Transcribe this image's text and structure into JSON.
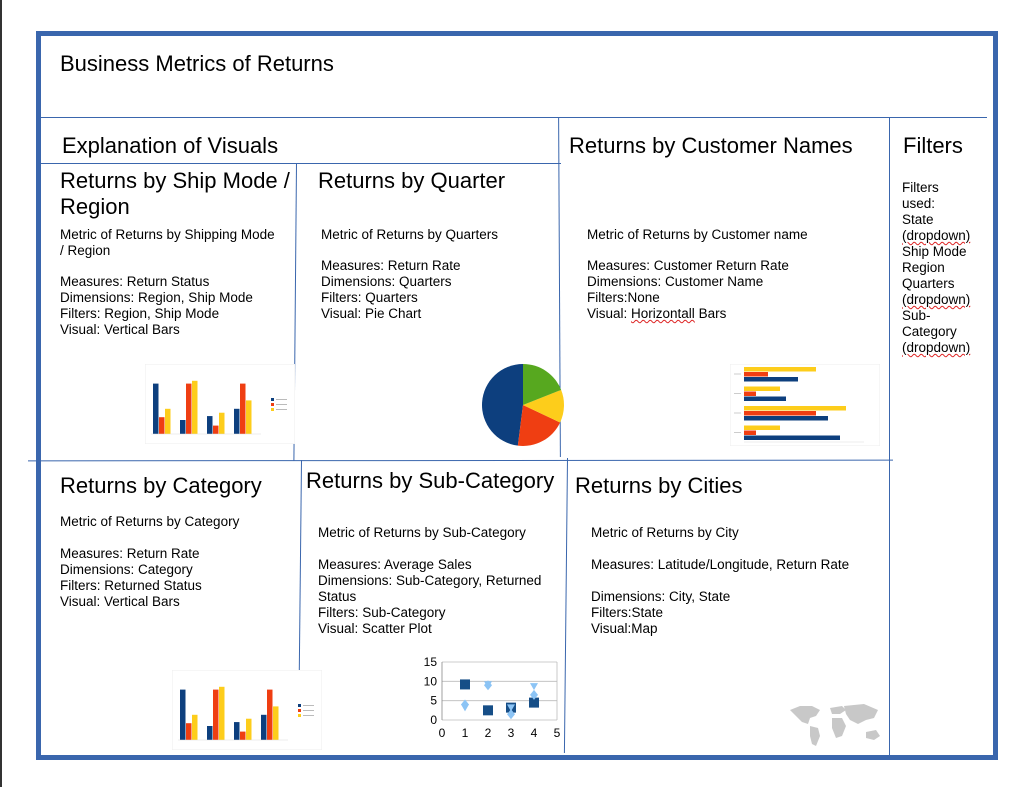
{
  "title": "Business Metrics of Returns",
  "explanation_heading": "Explanation of Visuals",
  "panels": {
    "ship_mode": {
      "heading": "Returns by Ship Mode / Region",
      "metric": "Metric of Returns by Shipping Mode / Region",
      "measures": "Measures: Return Status",
      "dimensions": "Dimensions: Region, Ship Mode",
      "filters": "Filters: Region, Ship Mode",
      "visual": "Visual: Vertical Bars"
    },
    "quarter": {
      "heading": "Returns by Quarter",
      "metric": "Metric of Returns by Quarters",
      "measures": "Measures: Return Rate",
      "dimensions": "Dimensions: Quarters",
      "filters": "Filters: Quarters",
      "visual": "Visual: Pie Chart"
    },
    "customer": {
      "heading": "Returns by Customer Names",
      "metric": "Metric of Returns by Customer name",
      "measures": "Measures: Customer Return Rate",
      "dimensions": "Dimensions: Customer Name",
      "filters": "Filters:None",
      "visual_prefix": "Visual: ",
      "visual_word": "Horizontall",
      "visual_suffix": " Bars"
    },
    "category": {
      "heading": "Returns by Category",
      "metric": "Metric of Returns by Category",
      "measures": "Measures: Return Rate",
      "dimensions": "Dimensions: Category",
      "filters": "Filters: Returned Status",
      "visual": "Visual: Vertical Bars"
    },
    "subcategory": {
      "heading": "Returns by Sub-Category",
      "metric": "Metric of Returns by Sub-Category",
      "measures": "Measures: Average Sales",
      "dimensions": "Dimensions: Sub-Category, Returned Status",
      "filters": "Filters: Sub-Category",
      "visual": "Visual: Scatter Plot"
    },
    "cities": {
      "heading": "Returns by Cities",
      "metric": "Metric of Returns by City",
      "measures": "Measures: Latitude/Longitude, Return Rate",
      "dimensions": "Dimensions: City, State",
      "filters": "Filters:State",
      "visual": "Visual:Map"
    }
  },
  "filters_panel": {
    "heading": "Filters",
    "intro": "Filters used:",
    "items": [
      {
        "text": "State",
        "note": "(dropdown)"
      },
      {
        "text": "Ship Mode",
        "note": ""
      },
      {
        "text": "Region",
        "note": ""
      },
      {
        "text": "Quarters",
        "note": "(dropdown)"
      },
      {
        "text": "Sub-Category",
        "note": "(dropdown)"
      }
    ]
  },
  "colors": {
    "frame": "#3a66ad",
    "navy": "#0d3f7e",
    "red": "#ef3e12",
    "yellow": "#fdcd1b",
    "green": "#57a81f",
    "scatter_dark": "#164e87",
    "scatter_light": "#8cc4f5"
  },
  "chart_data": [
    {
      "type": "bar",
      "categories": [
        "",
        "",
        "",
        ""
      ],
      "series": [
        {
          "values": [
            9,
            2.5,
            3.2,
            4.5
          ]
        },
        {
          "values": [
            3,
            9,
            1.5,
            9
          ]
        },
        {
          "values": [
            4.5,
            9.5,
            3.8,
            6
          ]
        }
      ],
      "ylim": [
        0,
        10
      ]
    },
    {
      "type": "pie",
      "values": [
        48,
        20,
        13,
        19
      ]
    },
    {
      "type": "bar",
      "orientation": "horizontal",
      "categories": [
        "",
        "",
        "",
        ""
      ],
      "series": [
        {
          "values": [
            4.5,
            3.5,
            7,
            8
          ]
        },
        {
          "values": [
            2,
            1,
            6,
            1
          ]
        },
        {
          "values": [
            6,
            3,
            8.5,
            3
          ]
        }
      ],
      "xlim": [
        0,
        10
      ]
    },
    {
      "type": "bar",
      "categories": [
        "",
        "",
        "",
        ""
      ],
      "series": [
        {
          "values": [
            9,
            2.5,
            3.2,
            4.5
          ]
        },
        {
          "values": [
            3,
            9,
            1.5,
            9
          ]
        },
        {
          "values": [
            4.5,
            9.5,
            3.8,
            6
          ]
        }
      ],
      "ylim": [
        0,
        10
      ]
    },
    {
      "type": "scatter",
      "x_ticks": [
        "0",
        "1",
        "2",
        "3",
        "4",
        "5"
      ],
      "y_ticks": [
        "0",
        "5",
        "10",
        "15"
      ],
      "xlim": [
        0,
        5
      ],
      "ylim": [
        0,
        15
      ],
      "series": [
        {
          "marker": "square",
          "points": [
            [
              1,
              9.2
            ],
            [
              2,
              2.5
            ],
            [
              3,
              3.2
            ],
            [
              4,
              4.5
            ]
          ]
        },
        {
          "marker": "diamond",
          "points": [
            [
              1,
              4
            ],
            [
              2,
              9
            ],
            [
              3,
              1.5
            ],
            [
              4,
              6.5
            ]
          ]
        },
        {
          "marker": "triangle",
          "points": [
            [
              1,
              3
            ],
            [
              2,
              9
            ],
            [
              3,
              3
            ],
            [
              4,
              8.5
            ]
          ]
        }
      ]
    }
  ]
}
